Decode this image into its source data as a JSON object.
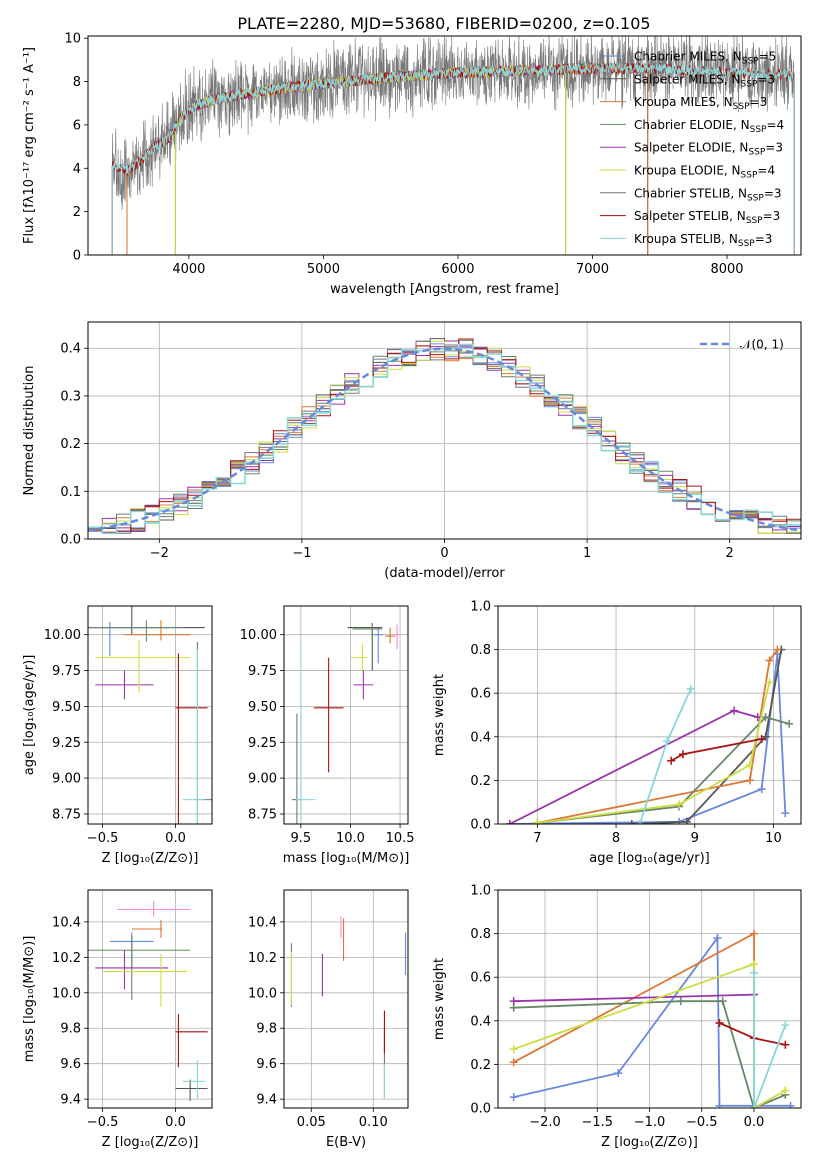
{
  "figure_title": "PLATE=2280, MJD=53680, FIBERID=0200, z=0.105",
  "series_colors": [
    "#6688dd",
    "#555555",
    "#dd7733",
    "#668866",
    "#9933aa",
    "#ccdd44",
    "#777777",
    "#aa1111",
    "#88d8d8"
  ],
  "chart_data": [
    {
      "id": "spectrum",
      "type": "line",
      "title": "PLATE=2280, MJD=53680, FIBERID=0200, z=0.105",
      "xlabel": "wavelength [Angstrom, rest frame]",
      "ylabel": "Flux [fλ10⁻¹⁷ erg cm⁻² s⁻¹ A⁻¹]",
      "xlim": [
        3250,
        8550
      ],
      "ylim": [
        0,
        10.1
      ],
      "xticks": [
        4000,
        5000,
        6000,
        7000,
        8000
      ],
      "yticks": [
        0,
        2,
        4,
        6,
        8,
        10
      ],
      "grid": false,
      "legend_position": "right",
      "series": [
        {
          "name": "Chabrier MILES, N",
          "sub": "SSP",
          "suffix": "=5",
          "color": "#6688dd",
          "x_range": [
            3540,
            7410
          ]
        },
        {
          "name": "Salpeter MILES, N",
          "sub": "SSP",
          "suffix": "=3",
          "color": "#555555",
          "x_range": [
            3540,
            7410
          ]
        },
        {
          "name": "Kroupa MILES, N",
          "sub": "SSP",
          "suffix": "=3",
          "color": "#dd7733",
          "x_range": [
            3540,
            7410
          ]
        },
        {
          "name": "Chabrier ELODIE, N",
          "sub": "SSP",
          "suffix": "=4",
          "color": "#668866",
          "x_range": [
            3900,
            6800
          ]
        },
        {
          "name": "Salpeter ELODIE, N",
          "sub": "SSP",
          "suffix": "=3",
          "color": "#9933aa",
          "x_range": [
            3900,
            6800
          ]
        },
        {
          "name": "Kroupa ELODIE, N",
          "sub": "SSP",
          "suffix": "=4",
          "color": "#ccdd44",
          "x_range": [
            3900,
            6800
          ]
        },
        {
          "name": "Chabrier STELIB, N",
          "sub": "SSP",
          "suffix": "=3",
          "color": "#777777",
          "x_range": [
            3430,
            8500
          ]
        },
        {
          "name": "Salpeter STELIB, N",
          "sub": "SSP",
          "suffix": "=3",
          "color": "#aa1111",
          "x_range": [
            3430,
            8500
          ]
        },
        {
          "name": "Kroupa STELIB, N",
          "sub": "SSP",
          "suffix": "=3",
          "color": "#88d8d8",
          "x_range": [
            3430,
            8500
          ]
        }
      ],
      "continuum": {
        "x": [
          3430,
          3550,
          3650,
          3750,
          3850,
          3950,
          4050,
          4200,
          4400,
          4700,
          5000,
          5500,
          6000,
          6500,
          7000,
          7500,
          8000,
          8500
        ],
        "y": [
          4.1,
          3.9,
          4.4,
          5.0,
          5.4,
          6.4,
          6.9,
          7.2,
          7.4,
          7.7,
          7.9,
          8.2,
          8.4,
          8.5,
          8.6,
          8.6,
          8.4,
          8.3
        ]
      }
    },
    {
      "id": "residuals",
      "type": "line",
      "xlabel": "(data-model)/error",
      "ylabel": "Normed distribution",
      "xlim": [
        -2.5,
        2.5
      ],
      "ylim": [
        0,
        0.455
      ],
      "xticks": [
        -2,
        -1,
        0,
        1,
        2
      ],
      "yticks": [
        0.0,
        0.1,
        0.2,
        0.3,
        0.4
      ],
      "grid": true,
      "legend_position": "top-right",
      "reference_label": "𝒩(0, 1)",
      "reference_color": "#6688dd",
      "bin_width": 0.1
    },
    {
      "id": "age_vs_Z",
      "type": "scatter",
      "xlabel": "Z [log₁₀(Z/Z⊙)]",
      "ylabel": "age  [log₁₀(age/yr)]",
      "xlim": [
        -0.6,
        0.25
      ],
      "ylim": [
        8.68,
        10.2
      ],
      "xticks": [
        -0.5,
        0.0
      ],
      "yticks": [
        8.75,
        9.0,
        9.25,
        9.5,
        9.75,
        10.0
      ],
      "grid": true,
      "points": [
        {
          "x": -0.45,
          "y": 10.05,
          "xerr": [
            0.4,
            0.4
          ],
          "yerr": [
            0.2,
            0.04
          ],
          "color": "#6688dd"
        },
        {
          "x": -0.3,
          "y": 10.05,
          "xerr": [
            0.3,
            0.5
          ],
          "yerr": [
            0.05,
            0.15
          ],
          "color": "#555555"
        },
        {
          "x": -0.1,
          "y": 10.0,
          "xerr": [
            0.25,
            0.2
          ],
          "yerr": [
            0.04,
            0.1
          ],
          "color": "#dd7733"
        },
        {
          "x": -0.2,
          "y": 10.05,
          "xerr": [
            0.4,
            0.25
          ],
          "yerr": [
            0.1,
            0.05
          ],
          "color": "#668866"
        },
        {
          "x": -0.35,
          "y": 9.65,
          "xerr": [
            0.2,
            0.2
          ],
          "yerr": [
            0.1,
            0.1
          ],
          "color": "#9933aa"
        },
        {
          "x": -0.25,
          "y": 9.84,
          "xerr": [
            0.3,
            0.35
          ],
          "yerr": [
            0.24,
            0.12
          ],
          "color": "#ccdd44"
        },
        {
          "x": 0.15,
          "y": 8.85,
          "xerr": [
            0.02,
            0.1
          ],
          "yerr": [
            0.45,
            1.1
          ],
          "color": "#777777"
        },
        {
          "x": 0.02,
          "y": 9.49,
          "xerr": [
            0.02,
            0.2
          ],
          "yerr": [
            0.82,
            0.38
          ],
          "color": "#aa1111"
        },
        {
          "x": 0.15,
          "y": 8.85,
          "xerr": [
            0.1,
            0.05
          ],
          "yerr": [
            0.2,
            1.05
          ],
          "color": "#88d8d8"
        }
      ]
    },
    {
      "id": "age_vs_mass",
      "type": "scatter",
      "xlabel": "mass [log₁₀(M/M⊙)]",
      "ylabel": "",
      "xlim": [
        9.33,
        10.58
      ],
      "ylim": [
        8.68,
        10.2
      ],
      "xticks": [
        9.5,
        10.0,
        10.5
      ],
      "yticks": [
        8.75,
        9.0,
        9.25,
        9.5,
        9.75,
        10.0
      ],
      "grid": true,
      "points": [
        {
          "x": 10.28,
          "y": 10.0,
          "xerr": [
            0.05,
            0.05
          ],
          "yerr": [
            0.2,
            0.05
          ],
          "color": "#6688dd"
        },
        {
          "x": 10.22,
          "y": 10.05,
          "xerr": [
            0.25,
            0.1
          ],
          "yerr": [
            0.3,
            0.03
          ],
          "color": "#555555"
        },
        {
          "x": 10.4,
          "y": 9.99,
          "xerr": [
            0.05,
            0.05
          ],
          "yerr": [
            0.05,
            0.06
          ],
          "color": "#dd7733"
        },
        {
          "x": 10.22,
          "y": 10.04,
          "xerr": [
            0.2,
            0.1
          ],
          "yerr": [
            0.1,
            0.04
          ],
          "color": "#668866"
        },
        {
          "x": 10.13,
          "y": 9.65,
          "xerr": [
            0.1,
            0.1
          ],
          "yerr": [
            0.1,
            0.1
          ],
          "color": "#9933aa"
        },
        {
          "x": 10.12,
          "y": 9.84,
          "xerr": [
            0.12,
            0.05
          ],
          "yerr": [
            0.1,
            0.1
          ],
          "color": "#ccdd44"
        },
        {
          "x": 9.46,
          "y": 8.85,
          "xerr": [
            0.05,
            0.05
          ],
          "yerr": [
            0.2,
            0.6
          ],
          "color": "#777777"
        },
        {
          "x": 9.78,
          "y": 9.49,
          "xerr": [
            0.15,
            0.15
          ],
          "yerr": [
            0.45,
            0.35
          ],
          "color": "#aa1111"
        },
        {
          "x": 9.5,
          "y": 8.85,
          "xerr": [
            0.05,
            0.15
          ],
          "yerr": [
            0.3,
            1.08
          ],
          "color": "#88d8d8"
        },
        {
          "x": 10.47,
          "y": 10.0,
          "xerr": [
            0.02,
            0.02
          ],
          "yerr": [
            0.1,
            0.07
          ],
          "color": "#ff88cc"
        }
      ]
    },
    {
      "id": "weight_vs_age",
      "type": "line",
      "xlabel": "age  [log₁₀(age/yr)]",
      "ylabel": "mass weight",
      "xlim": [
        6.5,
        10.35
      ],
      "ylim": [
        0.0,
        1.0
      ],
      "xticks": [
        7,
        8,
        9,
        10
      ],
      "yticks": [
        0.0,
        0.2,
        0.4,
        0.6,
        0.8,
        1.0
      ],
      "grid": true,
      "series": [
        {
          "color": "#6688dd",
          "x": [
            6.65,
            8.8,
            9.85,
            10.05,
            10.15
          ],
          "y": [
            0.0,
            0.01,
            0.16,
            0.78,
            0.05
          ]
        },
        {
          "color": "#555555",
          "x": [
            8.2,
            8.9,
            9.9,
            10.1
          ],
          "y": [
            0.0,
            0.01,
            0.4,
            0.8
          ]
        },
        {
          "color": "#dd7733",
          "x": [
            7.0,
            9.7,
            9.95,
            10.05
          ],
          "y": [
            0.005,
            0.2,
            0.75,
            0.8
          ]
        },
        {
          "color": "#668866",
          "x": [
            7.0,
            8.8,
            9.9,
            10.2
          ],
          "y": [
            0.005,
            0.08,
            0.49,
            0.46
          ]
        },
        {
          "color": "#9933aa",
          "x": [
            6.65,
            9.5,
            9.8
          ],
          "y": [
            0.0,
            0.52,
            0.49
          ]
        },
        {
          "color": "#ccdd44",
          "x": [
            7.0,
            8.8,
            9.7,
            9.95
          ],
          "y": [
            0.005,
            0.09,
            0.27,
            0.65
          ]
        },
        {
          "color": "#aa1111",
          "x": [
            8.7,
            8.85,
            9.85
          ],
          "y": [
            0.29,
            0.32,
            0.39
          ]
        },
        {
          "color": "#88d8d8",
          "x": [
            8.3,
            8.65,
            8.95
          ],
          "y": [
            0.0,
            0.38,
            0.62
          ]
        }
      ]
    },
    {
      "id": "mass_vs_Z",
      "type": "scatter",
      "xlabel": "Z [log₁₀(Z/Z⊙)]",
      "ylabel": "mass [log₁₀(M/M⊙)]",
      "xlim": [
        -0.6,
        0.25
      ],
      "ylim": [
        9.35,
        10.58
      ],
      "xticks": [
        -0.5,
        0.0
      ],
      "yticks": [
        9.4,
        9.6,
        9.8,
        10.0,
        10.2,
        10.4
      ],
      "grid": true,
      "points": [
        {
          "x": -0.3,
          "y": 10.29,
          "xerr": [
            0.15,
            0.15
          ],
          "yerr": [
            0.15,
            0.05
          ],
          "color": "#6688dd"
        },
        {
          "x": 0.1,
          "y": 9.46,
          "xerr": [
            0.1,
            0.12
          ],
          "yerr": [
            0.07,
            0.05
          ],
          "color": "#555555"
        },
        {
          "x": -0.1,
          "y": 10.36,
          "xerr": [
            0.2,
            0.01
          ],
          "yerr": [
            0.05,
            0.05
          ],
          "color": "#dd7733"
        },
        {
          "x": -0.3,
          "y": 10.24,
          "xerr": [
            0.3,
            0.4
          ],
          "yerr": [
            0.28,
            0.08
          ],
          "color": "#668866"
        },
        {
          "x": -0.35,
          "y": 10.14,
          "xerr": [
            0.2,
            0.3
          ],
          "yerr": [
            0.12,
            0.1
          ],
          "color": "#9933aa"
        },
        {
          "x": -0.1,
          "y": 10.12,
          "xerr": [
            0.4,
            0.18
          ],
          "yerr": [
            0.2,
            0.1
          ],
          "color": "#ccdd44"
        },
        {
          "x": 0.02,
          "y": 9.78,
          "xerr": [
            0.02,
            0.2
          ],
          "yerr": [
            0.2,
            0.1
          ],
          "color": "#aa1111"
        },
        {
          "x": 0.15,
          "y": 9.5,
          "xerr": [
            0.1,
            0.05
          ],
          "yerr": [
            0.1,
            0.12
          ],
          "color": "#88d8d8"
        },
        {
          "x": -0.15,
          "y": 10.47,
          "xerr": [
            0.25,
            0.25
          ],
          "yerr": [
            0.04,
            0.05
          ],
          "color": "#ff88cc"
        }
      ]
    },
    {
      "id": "mass_vs_ebv",
      "type": "scatter",
      "xlabel": "E(B-V)",
      "ylabel": "",
      "xlim": [
        0.028,
        0.128
      ],
      "ylim": [
        9.35,
        10.58
      ],
      "xticks": [
        0.05,
        0.1
      ],
      "yticks": [
        9.4,
        9.6,
        9.8,
        10.0,
        10.2,
        10.4
      ],
      "grid": true,
      "points": [
        {
          "x": 0.126,
          "y": 10.22,
          "yerr": [
            0.12,
            0.12
          ],
          "color": "#6688dd"
        },
        {
          "x": 0.034,
          "y": 10.1,
          "yerr": [
            0.18,
            0.18
          ],
          "color": "#668866"
        },
        {
          "x": 0.059,
          "y": 10.1,
          "yerr": [
            0.12,
            0.12
          ],
          "color": "#9933aa"
        },
        {
          "x": 0.034,
          "y": 10.08,
          "yerr": [
            0.15,
            0.15
          ],
          "color": "#ccdd44"
        },
        {
          "x": 0.109,
          "y": 9.6,
          "yerr": [
            0.2,
            0.2
          ],
          "color": "#777777"
        },
        {
          "x": 0.109,
          "y": 9.78,
          "yerr": [
            0.12,
            0.12
          ],
          "color": "#aa1111"
        },
        {
          "x": 0.109,
          "y": 9.5,
          "yerr": [
            0.1,
            0.1
          ],
          "color": "#88d8d8"
        },
        {
          "x": 0.076,
          "y": 10.3,
          "yerr": [
            0.12,
            0.12
          ],
          "color": "#dd7733"
        },
        {
          "x": 0.074,
          "y": 10.37,
          "yerr": [
            0.06,
            0.06
          ],
          "color": "#ff88cc"
        }
      ]
    },
    {
      "id": "weight_vs_Z",
      "type": "line",
      "xlabel": "Z [log₁₀(Z/Z⊙)]",
      "ylabel": "mass weight",
      "xlim": [
        -2.45,
        0.45
      ],
      "ylim": [
        0.0,
        1.0
      ],
      "xticks": [
        -2.0,
        -1.5,
        -1.0,
        -0.5,
        0.0
      ],
      "yticks": [
        0.0,
        0.2,
        0.4,
        0.6,
        0.8,
        1.0
      ],
      "grid": true,
      "series": [
        {
          "color": "#6688dd",
          "x": [
            -2.3,
            -1.3,
            -0.35,
            -0.33,
            0.35
          ],
          "y": [
            0.05,
            0.16,
            0.78,
            0.01,
            0.01
          ]
        },
        {
          "color": "#dd7733",
          "x": [
            -2.3,
            0.0,
            0.0
          ],
          "y": [
            0.21,
            0.8,
            0.0
          ]
        },
        {
          "color": "#668866",
          "x": [
            -2.3,
            -0.7,
            -0.3,
            0.0,
            0.3
          ],
          "y": [
            0.46,
            0.49,
            0.49,
            0.0,
            0.06
          ]
        },
        {
          "color": "#9933aa",
          "x": [
            -2.3,
            0.0
          ],
          "y": [
            0.49,
            0.52
          ]
        },
        {
          "color": "#ccdd44",
          "x": [
            -2.3,
            0.0,
            0.0,
            0.3
          ],
          "y": [
            0.27,
            0.66,
            0.0,
            0.08
          ]
        },
        {
          "color": "#aa1111",
          "x": [
            -0.33,
            0.0,
            0.3
          ],
          "y": [
            0.39,
            0.32,
            0.29
          ]
        },
        {
          "color": "#88d8d8",
          "x": [
            0.0,
            0.0,
            0.3
          ],
          "y": [
            0.62,
            0.0,
            0.38
          ]
        }
      ]
    }
  ]
}
